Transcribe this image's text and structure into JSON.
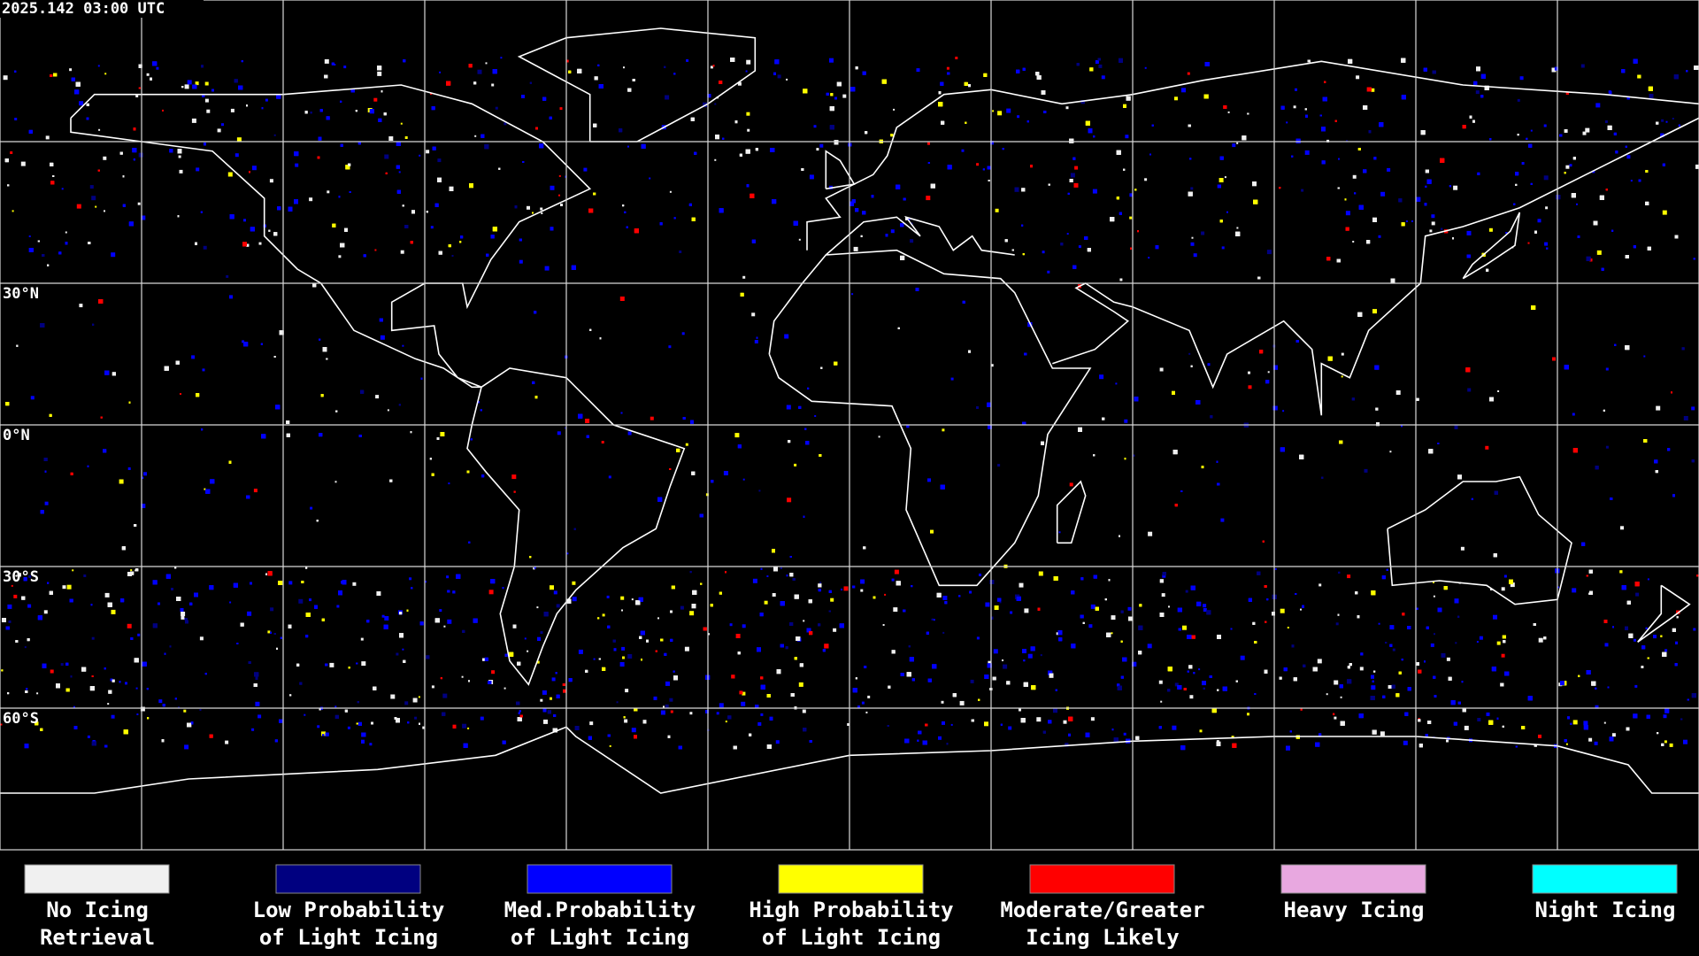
{
  "header": {
    "timestamp": "2025.142 03:00 UTC"
  },
  "map": {
    "latitude_labels": [
      "30°N",
      "0°N",
      "30°S",
      "60°S"
    ]
  },
  "legend": {
    "items": [
      {
        "label": [
          "No Icing",
          "Retrieval"
        ],
        "color": "#f0f0f0"
      },
      {
        "label": [
          "Low Probability",
          "of Light Icing"
        ],
        "color": "#000080"
      },
      {
        "label": [
          "Med.Probability",
          "of Light Icing"
        ],
        "color": "#0000ff"
      },
      {
        "label": [
          "High Probability",
          "of Light Icing"
        ],
        "color": "#ffff00"
      },
      {
        "label": [
          "Moderate/Greater",
          "Icing Likely"
        ],
        "color": "#ff0000"
      },
      {
        "label": [
          "Heavy Icing"
        ],
        "color": "#e8a8e0"
      },
      {
        "label": [
          "Night Icing"
        ],
        "color": "#00ffff"
      }
    ]
  }
}
